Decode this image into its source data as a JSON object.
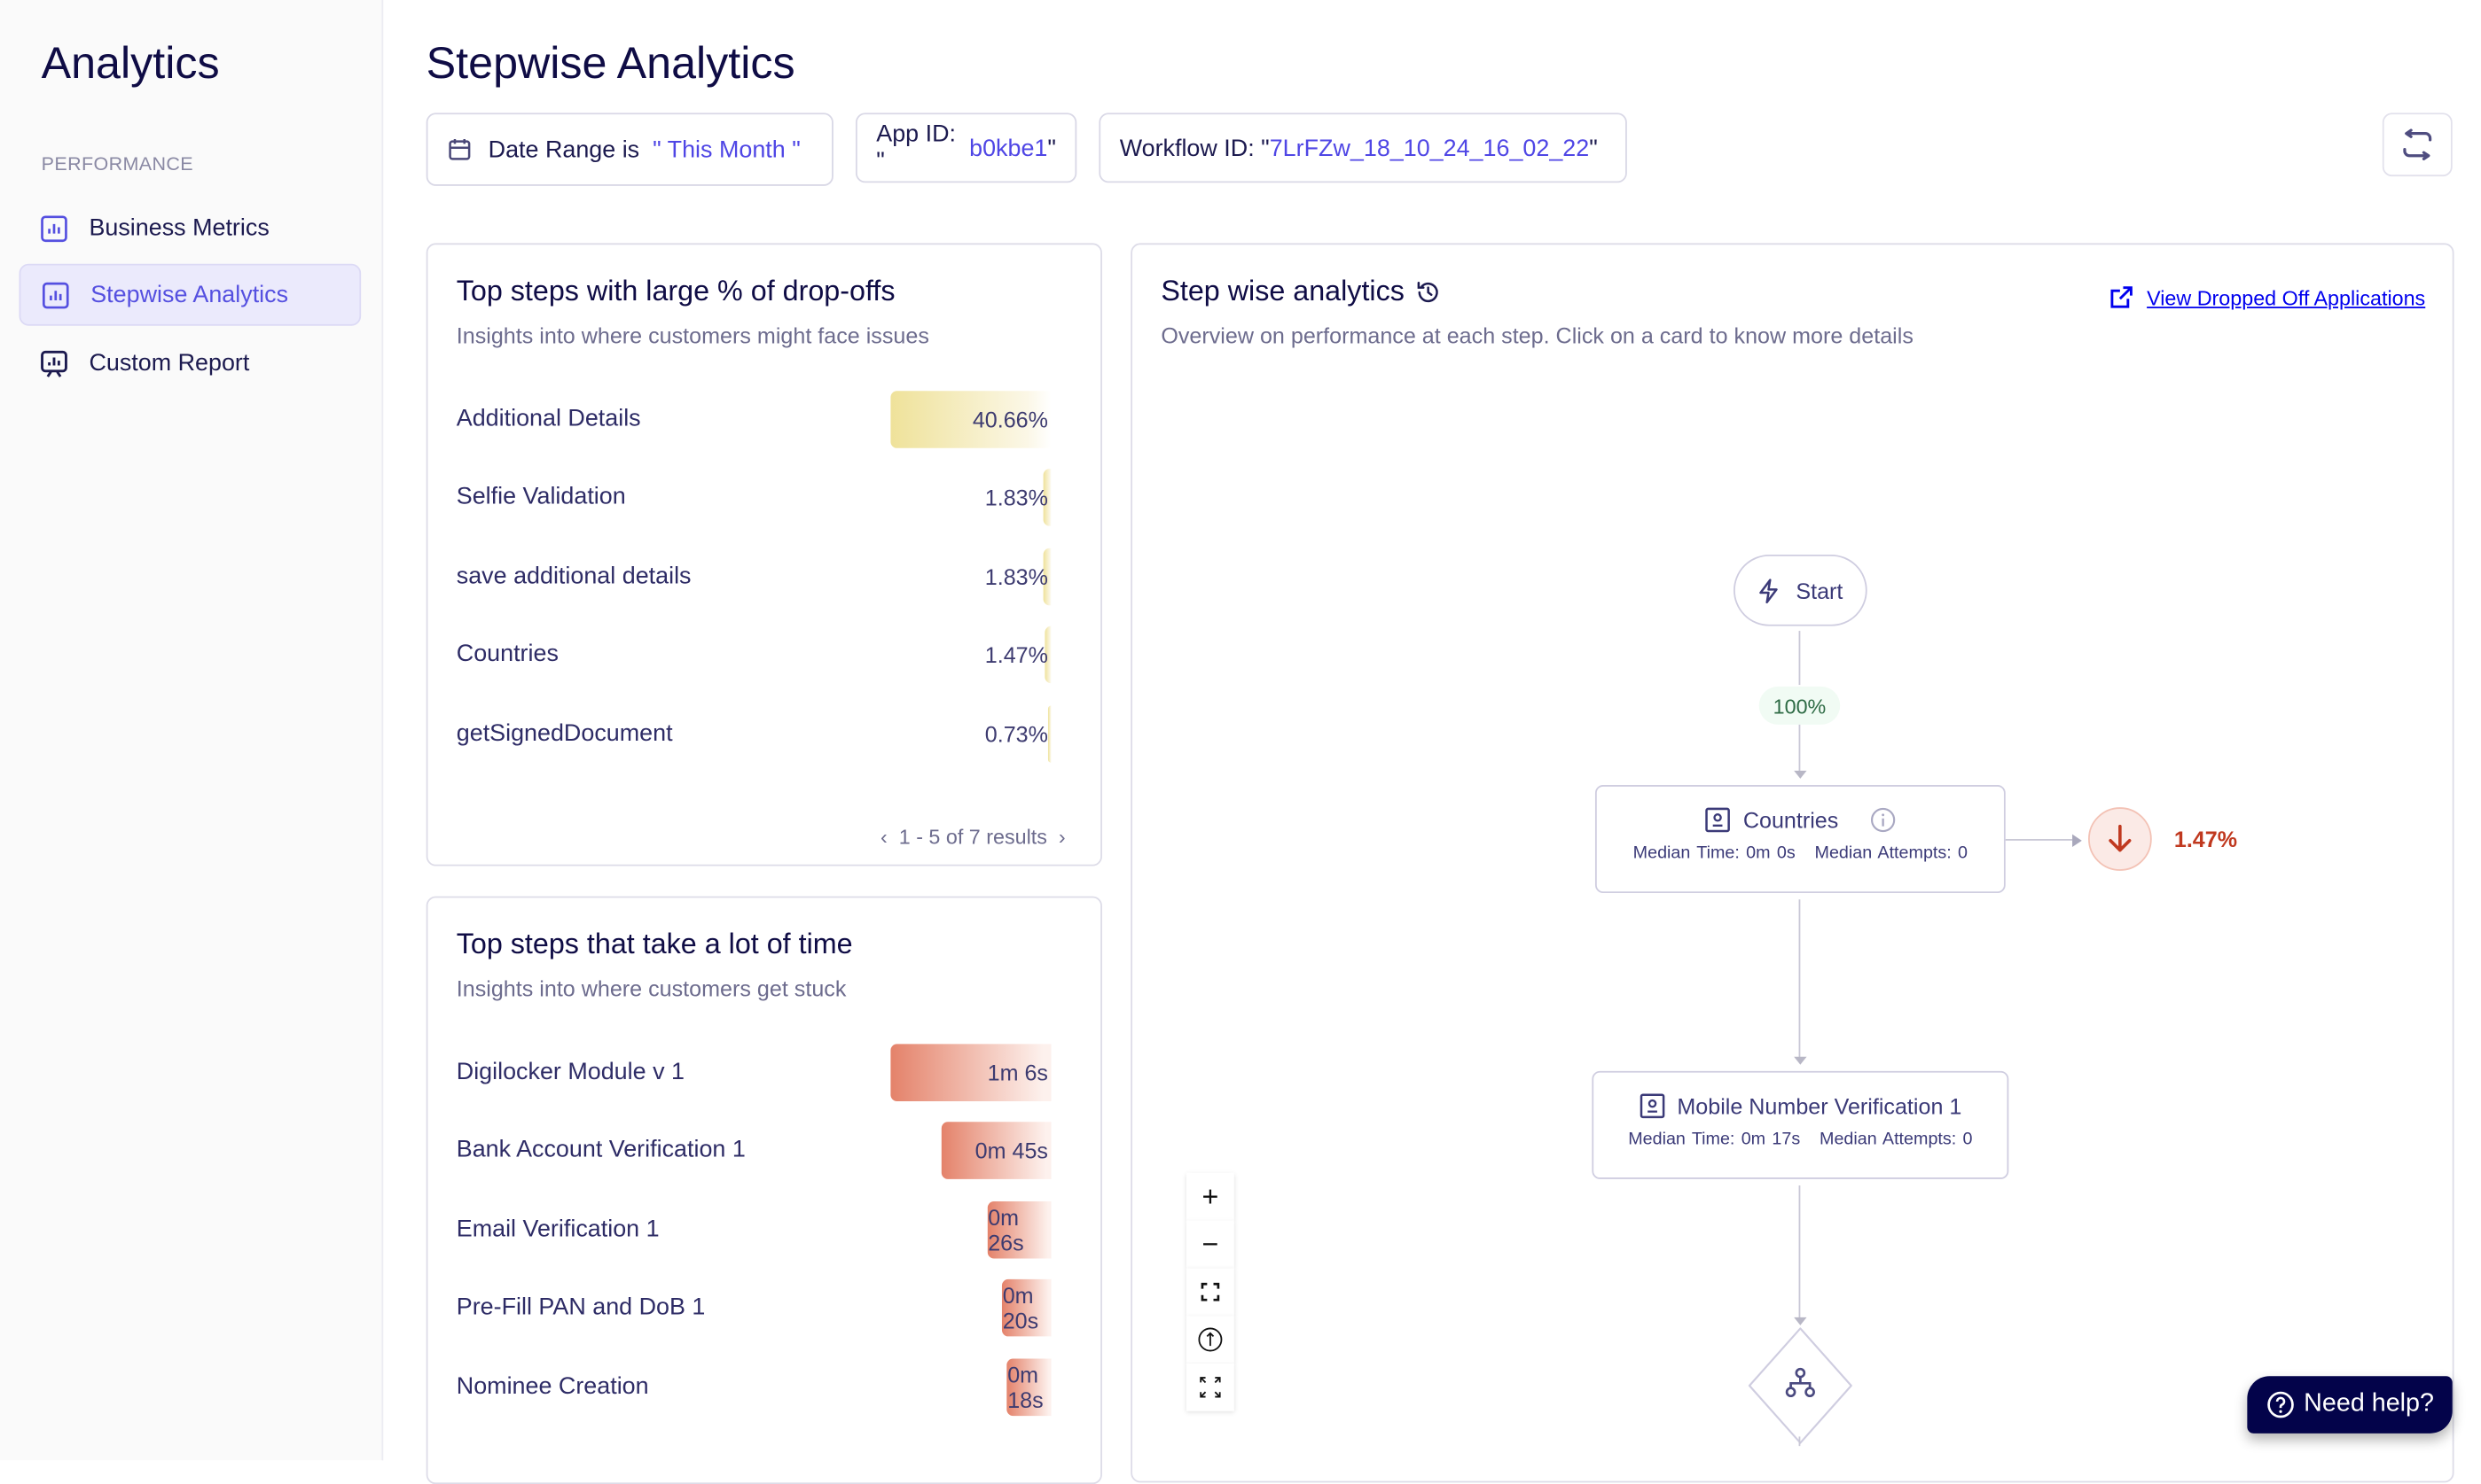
{
  "sidebar": {
    "title": "Analytics",
    "section": "PERFORMANCE",
    "items": [
      {
        "label": "Business Metrics",
        "icon": "bar-chart-icon",
        "active": false
      },
      {
        "label": "Stepwise Analytics",
        "icon": "bar-chart-icon",
        "active": true
      },
      {
        "label": "Custom Report",
        "icon": "presentation-chart-icon",
        "active": false
      }
    ]
  },
  "header": {
    "title": "Stepwise Analytics",
    "filters": {
      "date_label": "Date Range is",
      "date_value": "\" This Month \"",
      "app_label": "App ID: \"",
      "app_value": "b0kbe1",
      "app_suffix": "\"",
      "workflow_label": "Workflow ID: \"",
      "workflow_value": "7LrFZw_18_10_24_16_02_22",
      "workflow_suffix": "\""
    },
    "refresh_icon": "repeat-icon"
  },
  "dropoffs": {
    "title": "Top steps with large % of drop-offs",
    "subtitle": "Insights into where customers might face issues",
    "color": "#efe29a",
    "rows": [
      {
        "label": "Additional Details",
        "value": "40.66%",
        "pct": 40.66
      },
      {
        "label": "Selfie Validation",
        "value": "1.83%",
        "pct": 1.83
      },
      {
        "label": "save additional details",
        "value": "1.83%",
        "pct": 1.83
      },
      {
        "label": "Countries",
        "value": "1.47%",
        "pct": 1.47
      },
      {
        "label": "getSignedDocument",
        "value": "0.73%",
        "pct": 0.73
      }
    ],
    "pagination": "1 - 5 of 7 results"
  },
  "time": {
    "title": "Top steps that take a lot of time",
    "subtitle": "Insights into where customers get stuck",
    "color": "#e4826a",
    "rows": [
      {
        "label": "Digilocker Module v 1",
        "value": "1m 6s"
      },
      {
        "label": "Bank Account Verification 1",
        "value": "0m 45s"
      },
      {
        "label": "Email Verification 1",
        "value": "0m 26s"
      },
      {
        "label": "Pre-Fill PAN and DoB 1",
        "value": "0m 20s"
      },
      {
        "label": "Nominee Creation",
        "value": "0m 18s"
      }
    ]
  },
  "flow": {
    "title": "Step wise analytics",
    "subtitle": "Overview on performance at each step. Click on a card to know more details",
    "link": "View Dropped Off Applications",
    "start": "Start",
    "start_pct": "100%",
    "nodes": [
      {
        "title": "Countries",
        "time": "Median Time: 0m 0s",
        "attempts": "Median Attempts: 0",
        "dropoff": "1.47%"
      },
      {
        "title": "Mobile Number Verification 1",
        "time": "Median Time: 0m 17s",
        "attempts": "Median Attempts: 0"
      }
    ],
    "colors": {
      "success": "#2e6b45",
      "danger": "#c0391f",
      "link": "#0000ee"
    }
  },
  "help": {
    "label": "Need help?"
  }
}
